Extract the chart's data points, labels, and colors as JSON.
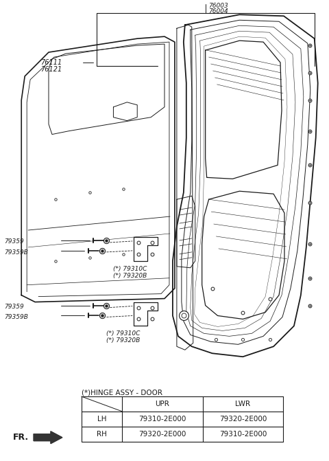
{
  "bg_color": "#ffffff",
  "line_color": "#1a1a1a",
  "gray_color": "#888888",
  "label_76003": "76003",
  "label_76004": "76004",
  "label_76111": "76111",
  "label_76121": "76121",
  "label_79359_upper": "79359",
  "label_79359B_upper": "79359B",
  "label_79310C_upper": "(*) 79310C",
  "label_79320B_upper": "(*) 79320B",
  "label_79359_lower": "79359",
  "label_79359B_lower": "79359B",
  "label_79310C_lower": "(*) 79310C",
  "label_79320B_lower": "(*) 79320B",
  "table_title": "(*)HINGE ASSY - DOOR",
  "table_headers": [
    "",
    "UPR",
    "LWR"
  ],
  "table_row1": [
    "LH",
    "79310-2E000",
    "79320-2E000"
  ],
  "table_row2": [
    "RH",
    "79320-2E000",
    "79310-2E000"
  ],
  "fr_label": "FR.",
  "font_size_small": 6.5,
  "font_size_table": 7.5
}
